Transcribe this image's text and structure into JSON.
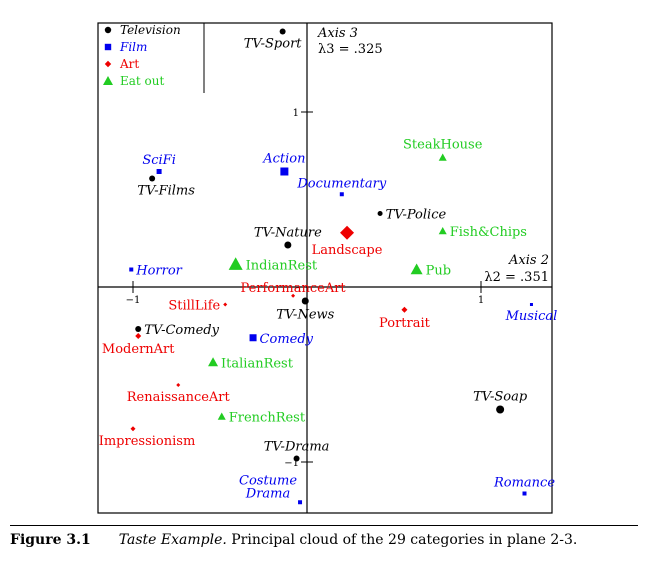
{
  "chart_data": {
    "type": "scatter",
    "xlim": [
      -1.4,
      1.6
    ],
    "ylim": [
      -1.55,
      1.45
    ],
    "grid": false,
    "legend_position": "top-left",
    "x_axis": {
      "name": "Axis 2",
      "lambda": "λ2 = .351",
      "ticks": [
        {
          "value": -1,
          "label": "−1"
        },
        {
          "value": 1,
          "label": "1"
        }
      ]
    },
    "y_axis": {
      "name": "Axis 3",
      "lambda": "λ3 = .325",
      "ticks": [
        {
          "value": 1,
          "label": "1"
        },
        {
          "value": -1,
          "label": "−1"
        }
      ]
    },
    "categories": [
      {
        "key": "tv",
        "name": "Television",
        "color": "#000000",
        "marker": "circle",
        "italic": true
      },
      {
        "key": "film",
        "name": "Film",
        "color": "#0000ee",
        "marker": "square",
        "italic": true
      },
      {
        "key": "art",
        "name": "Art",
        "color": "#ee0000",
        "marker": "diamond",
        "italic": false
      },
      {
        "key": "eat",
        "name": "Eat out",
        "color": "#22cc22",
        "marker": "triangle",
        "italic": false
      }
    ],
    "points": [
      {
        "label": "TV-Sport",
        "cat": "tv",
        "x": -0.14,
        "y": 1.46,
        "size": 3,
        "anchor": "below-left"
      },
      {
        "label": "TV-Films",
        "cat": "tv",
        "x": -0.89,
        "y": 0.62,
        "size": 3,
        "anchor": "below-right"
      },
      {
        "label": "TV-Nature",
        "cat": "tv",
        "x": -0.11,
        "y": 0.24,
        "size": 3.5,
        "anchor": "above"
      },
      {
        "label": "TV-Police",
        "cat": "tv",
        "x": 0.42,
        "y": 0.42,
        "size": 2.5,
        "anchor": "right"
      },
      {
        "label": "TV-News",
        "cat": "tv",
        "x": -0.01,
        "y": -0.08,
        "size": 3.5,
        "anchor": "below"
      },
      {
        "label": "TV-Comedy",
        "cat": "tv",
        "x": -0.97,
        "y": -0.24,
        "size": 3,
        "anchor": "right"
      },
      {
        "label": "TV-Soap",
        "cat": "tv",
        "x": 1.11,
        "y": -0.7,
        "size": 4,
        "anchor": "above"
      },
      {
        "label": "TV-Drama",
        "cat": "tv",
        "x": -0.06,
        "y": -0.98,
        "size": 3,
        "anchor": "above"
      },
      {
        "label": "SciFi",
        "cat": "film",
        "x": -0.85,
        "y": 0.66,
        "size": 2.5,
        "anchor": "above"
      },
      {
        "label": "Action",
        "cat": "film",
        "x": -0.13,
        "y": 0.66,
        "size": 4,
        "anchor": "above"
      },
      {
        "label": "Documentary",
        "cat": "film",
        "x": 0.2,
        "y": 0.53,
        "size": 2,
        "anchor": "above"
      },
      {
        "label": "Horror",
        "cat": "film",
        "x": -1.01,
        "y": 0.1,
        "size": 2,
        "anchor": "right"
      },
      {
        "label": "Comedy",
        "cat": "film",
        "x": -0.31,
        "y": -0.29,
        "size": 3.5,
        "anchor": "right"
      },
      {
        "label": "Musical",
        "cat": "film",
        "x": 1.29,
        "y": -0.1,
        "size": 1.5,
        "anchor": "below"
      },
      {
        "label": "Romance",
        "cat": "film",
        "x": 1.25,
        "y": -1.18,
        "size": 2,
        "anchor": "above"
      },
      {
        "label": "Costume Drama",
        "cat": "film",
        "x": -0.04,
        "y": -1.23,
        "size": 2,
        "anchor": "above-left2"
      },
      {
        "label": "Landscape",
        "cat": "art",
        "x": 0.23,
        "y": 0.31,
        "size": 7,
        "anchor": "below"
      },
      {
        "label": "PerformanceArt",
        "cat": "art",
        "x": -0.08,
        "y": -0.05,
        "size": 2,
        "anchor": "center"
      },
      {
        "label": "StillLife",
        "cat": "art",
        "x": -0.47,
        "y": -0.1,
        "size": 2,
        "anchor": "left"
      },
      {
        "label": "Portrait",
        "cat": "art",
        "x": 0.56,
        "y": -0.13,
        "size": 3,
        "anchor": "below"
      },
      {
        "label": "ModernArt",
        "cat": "art",
        "x": -0.97,
        "y": -0.28,
        "size": 3,
        "anchor": "below"
      },
      {
        "label": "RenaissanceArt",
        "cat": "art",
        "x": -0.74,
        "y": -0.56,
        "size": 2,
        "anchor": "below"
      },
      {
        "label": "Impressionism",
        "cat": "art",
        "x": -1.0,
        "y": -0.81,
        "size": 2.5,
        "anchor": "below-right"
      },
      {
        "label": "SteakHouse",
        "cat": "eat",
        "x": 0.78,
        "y": 0.74,
        "size": 4,
        "anchor": "above"
      },
      {
        "label": "Fish&Chips",
        "cat": "eat",
        "x": 0.78,
        "y": 0.32,
        "size": 4,
        "anchor": "right"
      },
      {
        "label": "IndianRest",
        "cat": "eat",
        "x": -0.41,
        "y": 0.13,
        "size": 7,
        "anchor": "right"
      },
      {
        "label": "Pub",
        "cat": "eat",
        "x": 0.63,
        "y": 0.1,
        "size": 6,
        "anchor": "right"
      },
      {
        "label": "ItalianRest",
        "cat": "eat",
        "x": -0.54,
        "y": -0.43,
        "size": 5,
        "anchor": "right"
      },
      {
        "label": "FrenchRest",
        "cat": "eat",
        "x": -0.49,
        "y": -0.74,
        "size": 4,
        "anchor": "right"
      }
    ]
  },
  "caption": {
    "number": "Figure 3.1",
    "title": "Taste Example.",
    "text": "Principal cloud of the 29 categories in plane 2-3."
  }
}
